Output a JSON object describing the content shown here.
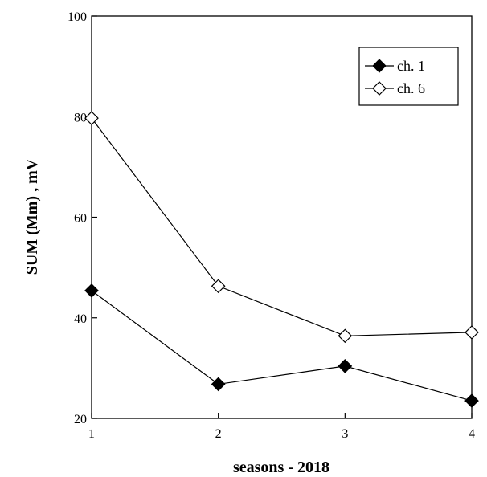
{
  "chart_data": {
    "type": "line",
    "title": "",
    "xlabel": "seasons - 2018",
    "ylabel": "SUM (Mm)  ,  mV",
    "x": [
      1,
      2,
      3,
      4
    ],
    "xlim": [
      1,
      4
    ],
    "ylim": [
      20,
      100
    ],
    "xticks": [
      1,
      2,
      3,
      4
    ],
    "yticks": [
      20,
      40,
      60,
      80,
      100
    ],
    "grid": false,
    "legend_position": "top-right",
    "series": [
      {
        "name": "ch. 1",
        "values": [
          45.4,
          26.8,
          30.4,
          23.5
        ],
        "marker": "diamond-filled",
        "color": "#000000"
      },
      {
        "name": "ch. 6",
        "values": [
          79.7,
          46.3,
          36.4,
          37.1
        ],
        "marker": "diamond-open",
        "color": "#000000"
      }
    ]
  }
}
